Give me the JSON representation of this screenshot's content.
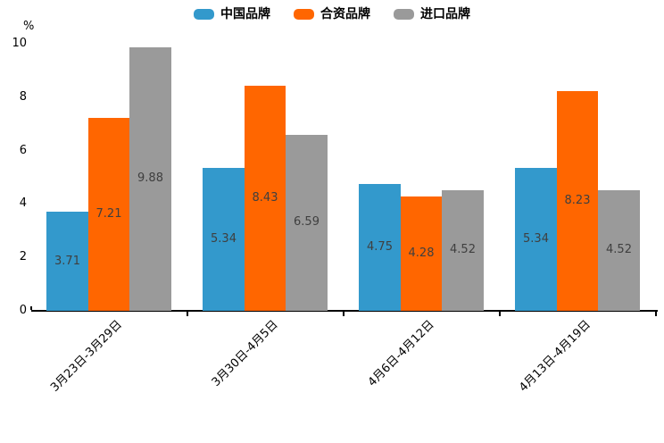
{
  "chart_data": {
    "type": "bar",
    "title": "",
    "unit_label": "%",
    "categories": [
      "3月23日-3月29日",
      "3月30日-4月5日",
      "4月6日-4月12日",
      "4月13日-4月19日"
    ],
    "series": [
      {
        "name": "中国品牌",
        "color": "#3399CC",
        "values": [
          3.71,
          5.34,
          4.75,
          5.34
        ]
      },
      {
        "name": "合资品牌",
        "color": "#FF6600",
        "values": [
          7.21,
          8.43,
          4.28,
          8.23
        ]
      },
      {
        "name": "进口品牌",
        "color": "#9A9A9A",
        "values": [
          9.88,
          6.59,
          4.52,
          4.52
        ]
      }
    ],
    "ylim": [
      0,
      10
    ],
    "yticks": [
      0,
      2,
      4,
      6,
      8,
      10
    ],
    "grid": false,
    "legend_position": "top",
    "value_labels": true,
    "colors": {
      "axis": "#000000",
      "tick_text": "#000000",
      "value_label_text": "#3f3f3f",
      "legend_text": "#000000",
      "background": "#ffffff"
    }
  }
}
